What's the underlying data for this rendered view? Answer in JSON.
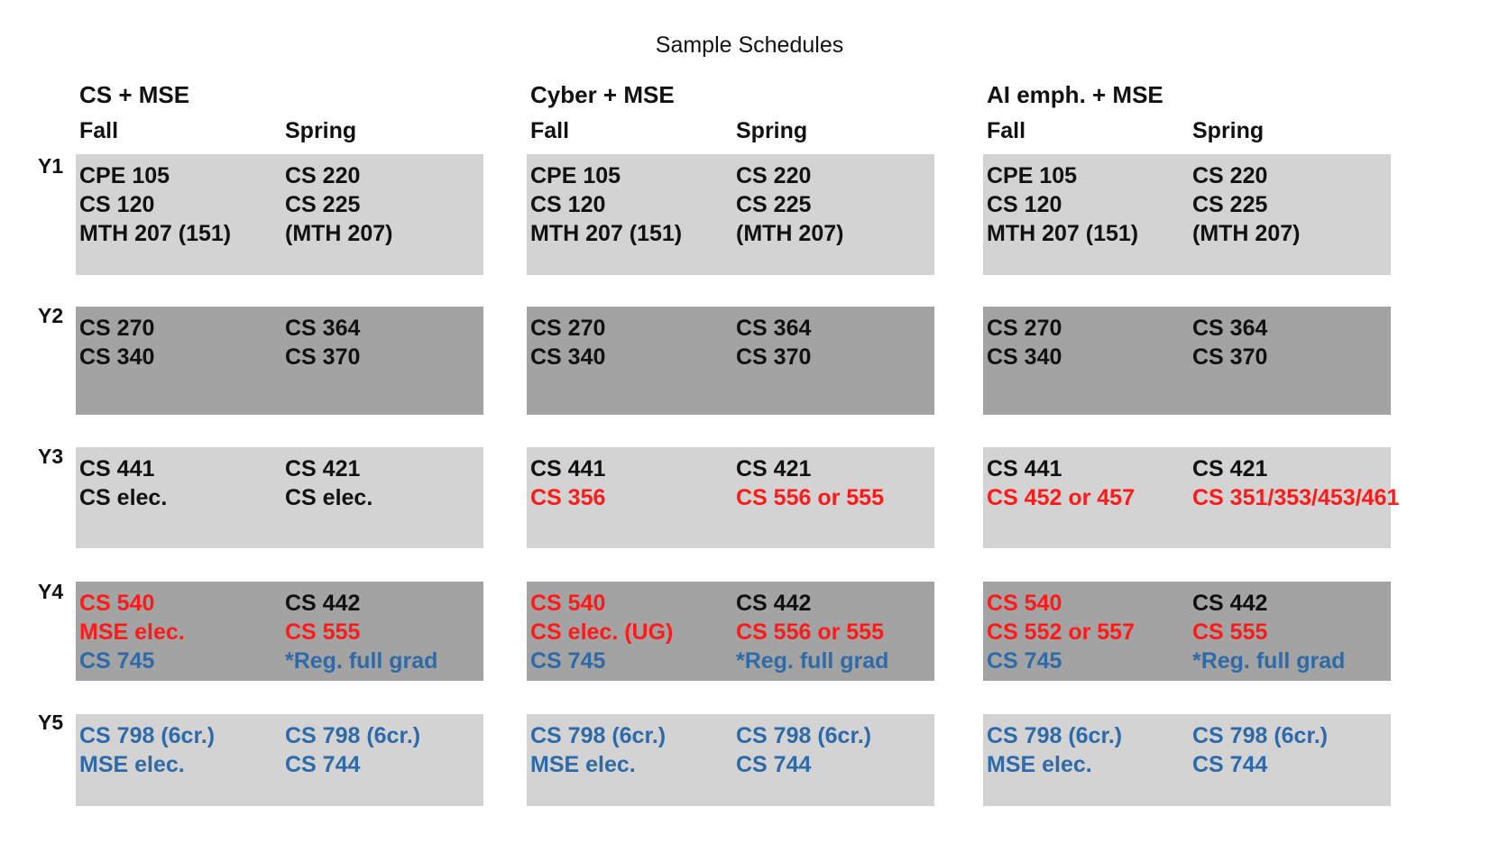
{
  "title": "Sample Schedules",
  "colors": {
    "black": "#111111",
    "red": "#ff1a1a",
    "blue": "#2f6aa8",
    "light_block": "#d3d3d3",
    "dark_block": "#a3a3a3"
  },
  "years": [
    "Y1",
    "Y2",
    "Y3",
    "Y4",
    "Y5"
  ],
  "tracks": [
    {
      "name": "CS + MSE",
      "fall_label": "Fall",
      "spring_label": "Spring",
      "rows": [
        {
          "fall": [
            {
              "t": "CPE 105",
              "c": "black"
            },
            {
              "t": "CS 120",
              "c": "black"
            },
            {
              "t": "MTH 207 (151)",
              "c": "black"
            }
          ],
          "spring": [
            {
              "t": "CS 220",
              "c": "black"
            },
            {
              "t": "CS 225",
              "c": "black"
            },
            {
              "t": "(MTH 207)",
              "c": "black"
            }
          ]
        },
        {
          "fall": [
            {
              "t": "CS 270",
              "c": "black"
            },
            {
              "t": "CS 340",
              "c": "black"
            }
          ],
          "spring": [
            {
              "t": "CS 364",
              "c": "black"
            },
            {
              "t": "CS 370",
              "c": "black"
            }
          ]
        },
        {
          "fall": [
            {
              "t": "CS 441",
              "c": "black"
            },
            {
              "t": "CS elec.",
              "c": "black"
            }
          ],
          "spring": [
            {
              "t": "CS 421",
              "c": "black"
            },
            {
              "t": "CS elec.",
              "c": "black"
            }
          ]
        },
        {
          "fall": [
            {
              "t": "CS 540",
              "c": "red"
            },
            {
              "t": "MSE elec.",
              "c": "red"
            },
            {
              "t": "CS 745",
              "c": "blue"
            }
          ],
          "spring": [
            {
              "t": "CS 442",
              "c": "black"
            },
            {
              "t": "CS 555",
              "c": "red"
            },
            {
              "t": "*Reg. full grad",
              "c": "blue"
            }
          ]
        },
        {
          "fall": [
            {
              "t": "CS 798 (6cr.)",
              "c": "blue"
            },
            {
              "t": "MSE elec.",
              "c": "blue"
            }
          ],
          "spring": [
            {
              "t": "CS 798 (6cr.)",
              "c": "blue"
            },
            {
              "t": "CS 744",
              "c": "blue"
            }
          ]
        }
      ]
    },
    {
      "name": "Cyber + MSE",
      "fall_label": "Fall",
      "spring_label": "Spring",
      "rows": [
        {
          "fall": [
            {
              "t": "CPE 105",
              "c": "black"
            },
            {
              "t": "CS 120",
              "c": "black"
            },
            {
              "t": "MTH 207 (151)",
              "c": "black"
            }
          ],
          "spring": [
            {
              "t": "CS 220",
              "c": "black"
            },
            {
              "t": "CS 225",
              "c": "black"
            },
            {
              "t": "(MTH 207)",
              "c": "black"
            }
          ]
        },
        {
          "fall": [
            {
              "t": "CS 270",
              "c": "black"
            },
            {
              "t": "CS 340",
              "c": "black"
            }
          ],
          "spring": [
            {
              "t": "CS 364",
              "c": "black"
            },
            {
              "t": "CS 370",
              "c": "black"
            }
          ]
        },
        {
          "fall": [
            {
              "t": "CS 441",
              "c": "black"
            },
            {
              "t": "CS 356",
              "c": "red"
            }
          ],
          "spring": [
            {
              "t": "CS 421",
              "c": "black"
            },
            {
              "t": "CS 556 or 555",
              "c": "red"
            }
          ]
        },
        {
          "fall": [
            {
              "t": "CS 540",
              "c": "red"
            },
            {
              "t": "CS elec. (UG)",
              "c": "red"
            },
            {
              "t": "CS 745",
              "c": "blue"
            }
          ],
          "spring": [
            {
              "t": "CS 442",
              "c": "black"
            },
            {
              "t": "CS 556 or 555",
              "c": "red"
            },
            {
              "t": "*Reg. full grad",
              "c": "blue"
            }
          ]
        },
        {
          "fall": [
            {
              "t": "CS 798 (6cr.)",
              "c": "blue"
            },
            {
              "t": "MSE elec.",
              "c": "blue"
            }
          ],
          "spring": [
            {
              "t": "CS 798 (6cr.)",
              "c": "blue"
            },
            {
              "t": "CS 744",
              "c": "blue"
            }
          ]
        }
      ]
    },
    {
      "name": "AI emph. + MSE",
      "fall_label": "Fall",
      "spring_label": "Spring",
      "rows": [
        {
          "fall": [
            {
              "t": "CPE 105",
              "c": "black"
            },
            {
              "t": "CS 120",
              "c": "black"
            },
            {
              "t": "MTH 207 (151)",
              "c": "black"
            }
          ],
          "spring": [
            {
              "t": "CS 220",
              "c": "black"
            },
            {
              "t": "CS 225",
              "c": "black"
            },
            {
              "t": "(MTH 207)",
              "c": "black"
            }
          ]
        },
        {
          "fall": [
            {
              "t": "CS 270",
              "c": "black"
            },
            {
              "t": "CS 340",
              "c": "black"
            }
          ],
          "spring": [
            {
              "t": "CS 364",
              "c": "black"
            },
            {
              "t": "CS 370",
              "c": "black"
            }
          ]
        },
        {
          "fall": [
            {
              "t": "CS 441",
              "c": "black"
            },
            {
              "t": "CS 452 or 457",
              "c": "red"
            }
          ],
          "spring": [
            {
              "t": "CS 421",
              "c": "black"
            },
            {
              "t": "CS 351/353/453/461",
              "c": "red"
            }
          ]
        },
        {
          "fall": [
            {
              "t": "CS 540",
              "c": "red"
            },
            {
              "t": "CS 552 or 557",
              "c": "red"
            },
            {
              "t": "CS 745",
              "c": "blue"
            }
          ],
          "spring": [
            {
              "t": "CS 442",
              "c": "black"
            },
            {
              "t": "CS 555",
              "c": "red"
            },
            {
              "t": "*Reg. full grad",
              "c": "blue"
            }
          ]
        },
        {
          "fall": [
            {
              "t": "CS 798 (6cr.)",
              "c": "blue"
            },
            {
              "t": "MSE elec.",
              "c": "blue"
            }
          ],
          "spring": [
            {
              "t": "CS 798 (6cr.)",
              "c": "blue"
            },
            {
              "t": "CS 744",
              "c": "blue"
            }
          ]
        }
      ]
    }
  ]
}
